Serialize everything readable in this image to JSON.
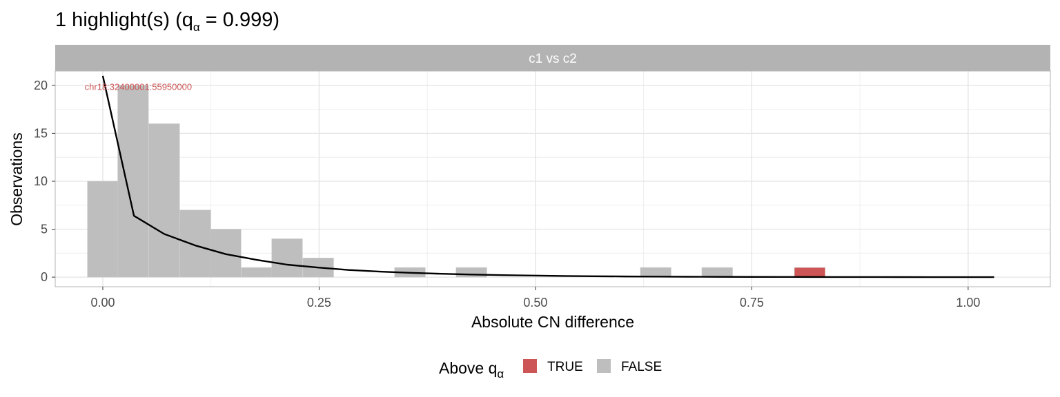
{
  "chart_data": {
    "type": "histogram",
    "title": "1 highlight(s) (q",
    "title_sub": "α",
    "title_tail": " = 0.999)",
    "facet_label": "c1 vs c2",
    "xlabel": "Absolute CN difference",
    "ylabel": "Observations",
    "xlim": [
      -0.055,
      1.095
    ],
    "ylim": [
      -1.0,
      21.5
    ],
    "x_ticks": [
      0.0,
      0.25,
      0.5,
      0.75,
      1.0
    ],
    "x_tick_labels": [
      "0.00",
      "0.25",
      "0.50",
      "0.75",
      "1.00"
    ],
    "y_ticks": [
      0,
      5,
      10,
      15,
      20
    ],
    "y_tick_labels": [
      "0",
      "5",
      "10",
      "15",
      "20"
    ],
    "bin_width": 0.0355,
    "bins": [
      {
        "x": 0.0,
        "count": 10,
        "above": false
      },
      {
        "x": 0.035,
        "count": 20,
        "above": false
      },
      {
        "x": 0.071,
        "count": 16,
        "above": false
      },
      {
        "x": 0.107,
        "count": 7,
        "above": false
      },
      {
        "x": 0.142,
        "count": 5,
        "above": false
      },
      {
        "x": 0.178,
        "count": 1,
        "above": false
      },
      {
        "x": 0.213,
        "count": 4,
        "above": false
      },
      {
        "x": 0.249,
        "count": 2,
        "above": false
      },
      {
        "x": 0.355,
        "count": 1,
        "above": false
      },
      {
        "x": 0.426,
        "count": 1,
        "above": false
      },
      {
        "x": 0.639,
        "count": 1,
        "above": false
      },
      {
        "x": 0.71,
        "count": 1,
        "above": false
      },
      {
        "x": 0.817,
        "count": 1,
        "above": true
      }
    ],
    "fit_line": {
      "x": [
        0.0,
        0.036,
        0.071,
        0.107,
        0.142,
        0.178,
        0.213,
        0.249,
        0.284,
        0.32,
        0.355,
        0.391,
        0.426,
        0.462,
        0.497,
        0.533,
        0.568,
        0.604,
        0.639,
        0.675,
        0.71,
        0.746,
        0.781,
        0.817,
        0.852,
        0.888,
        0.923,
        0.959,
        0.994,
        1.03
      ],
      "y": [
        21.0,
        6.4,
        4.5,
        3.3,
        2.4,
        1.8,
        1.3,
        1.0,
        0.75,
        0.58,
        0.45,
        0.35,
        0.27,
        0.21,
        0.16,
        0.12,
        0.095,
        0.07,
        0.055,
        0.043,
        0.033,
        0.025,
        0.02,
        0.015,
        0.012,
        0.009,
        0.007,
        0.005,
        0.004,
        0.003
      ]
    },
    "annotation": {
      "text": "chr18:32400001:55950000",
      "x": 0.041,
      "y": 19.9
    },
    "legend": {
      "position": "bottom",
      "title": "Above q",
      "title_sub": "α",
      "items": [
        {
          "label": "TRUE",
          "color": "#cd5555"
        },
        {
          "label": "FALSE",
          "color": "#bebebe"
        }
      ]
    },
    "colors": {
      "highlight": "#cd5555",
      "normal": "#bebebe",
      "fit_line": "#000000",
      "annotation": "#cd5555",
      "strip": "#b3b3b3",
      "grid": "#ebebeb",
      "panel_border": "#b3b3b3"
    },
    "grid": true
  }
}
